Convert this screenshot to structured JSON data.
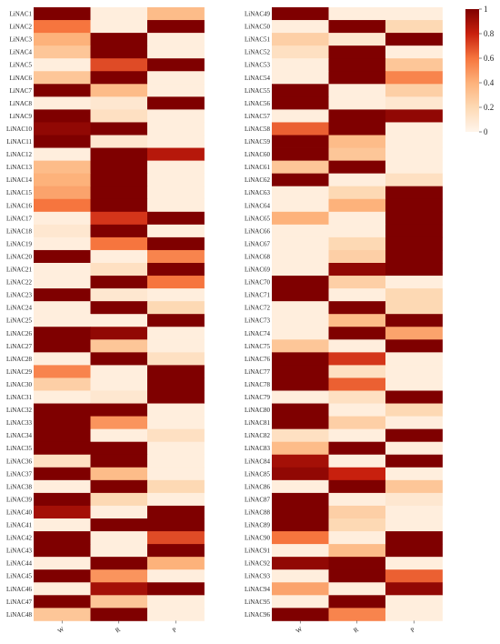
{
  "chart_data": {
    "type": "heatmap",
    "columns": [
      "W",
      "R",
      "P"
    ],
    "colorbar": {
      "min": 0,
      "max": 1,
      "ticks": [
        "0",
        "0.2",
        "0.4",
        "0.6",
        "0.8",
        "1"
      ]
    },
    "colors": {
      "low": "#fff5eb",
      "high": "#7f0000"
    },
    "panels": [
      {
        "rows": [
          "LiNAC1",
          "LiNAC2",
          "LiNAC3",
          "LiNAC4",
          "LiNAC5",
          "LiNAC6",
          "LiNAC7",
          "LiNAC8",
          "LiNAC9",
          "LiNAC10",
          "LiNAC11",
          "LiNAC12",
          "LiNAC13",
          "LiNAC14",
          "LiNAC15",
          "LiNAC16",
          "LiNAC17",
          "LiNAC18",
          "LiNAC19",
          "LiNAC20",
          "LiNAC21",
          "LiNAC22",
          "LiNAC23",
          "LiNAC24",
          "LiNAC25",
          "LiNAC26",
          "LiNAC27",
          "LiNAC28",
          "LiNAC29",
          "LiNAC30",
          "LiNAC31",
          "LiNAC32",
          "LiNAC33",
          "LiNAC34",
          "LiNAC35",
          "LiNAC36",
          "LiNAC37",
          "LiNAC38",
          "LiNAC39",
          "LiNAC40",
          "LiNAC41",
          "LiNAC42",
          "LiNAC43",
          "LiNAC44",
          "LiNAC45",
          "LiNAC46",
          "LiNAC47",
          "LiNAC48"
        ],
        "values": [
          [
            1.0,
            0.05,
            0.35
          ],
          [
            0.6,
            0.05,
            1.0
          ],
          [
            0.4,
            1.0,
            0.05
          ],
          [
            0.3,
            1.0,
            0.05
          ],
          [
            0.05,
            0.7,
            1.0
          ],
          [
            0.3,
            1.0,
            0.05
          ],
          [
            1.0,
            0.35,
            0.05
          ],
          [
            0.05,
            0.1,
            1.0
          ],
          [
            1.0,
            0.15,
            0.05
          ],
          [
            0.95,
            1.0,
            0.05
          ],
          [
            1.0,
            0.1,
            0.05
          ],
          [
            0.05,
            1.0,
            0.85
          ],
          [
            0.35,
            1.0,
            0.05
          ],
          [
            0.4,
            1.0,
            0.05
          ],
          [
            0.45,
            1.0,
            0.05
          ],
          [
            0.6,
            1.0,
            0.05
          ],
          [
            0.05,
            0.75,
            1.0
          ],
          [
            0.1,
            1.0,
            0.05
          ],
          [
            0.05,
            0.6,
            1.0
          ],
          [
            1.0,
            0.05,
            0.55
          ],
          [
            0.05,
            0.15,
            1.0
          ],
          [
            0.05,
            1.0,
            0.6
          ],
          [
            1.0,
            0.1,
            0.05
          ],
          [
            0.05,
            1.0,
            0.2
          ],
          [
            0.05,
            0.05,
            1.0
          ],
          [
            1.0,
            0.95,
            0.05
          ],
          [
            1.0,
            0.3,
            0.05
          ],
          [
            0.05,
            1.0,
            0.15
          ],
          [
            0.55,
            0.05,
            1.0
          ],
          [
            0.25,
            0.05,
            1.0
          ],
          [
            0.05,
            0.1,
            1.0
          ],
          [
            1.0,
            1.0,
            0.05
          ],
          [
            1.0,
            0.5,
            0.05
          ],
          [
            1.0,
            0.05,
            0.15
          ],
          [
            1.0,
            1.0,
            0.05
          ],
          [
            0.15,
            1.0,
            0.05
          ],
          [
            1.0,
            0.35,
            0.05
          ],
          [
            0.05,
            1.0,
            0.2
          ],
          [
            1.0,
            0.2,
            0.05
          ],
          [
            0.9,
            0.05,
            1.0
          ],
          [
            0.05,
            1.0,
            1.0
          ],
          [
            1.0,
            0.05,
            0.7
          ],
          [
            1.0,
            0.05,
            1.0
          ],
          [
            0.05,
            1.0,
            0.4
          ],
          [
            1.0,
            0.5,
            0.05
          ],
          [
            0.05,
            0.9,
            1.0
          ],
          [
            1.0,
            0.3,
            0.05
          ],
          [
            0.3,
            1.0,
            0.05
          ]
        ]
      },
      {
        "rows": [
          "LiNAC49",
          "LiNAC50",
          "LiNAC51",
          "LiNAC52",
          "LiNAC53",
          "LiNAC54",
          "LiNAC55",
          "LiNAC56",
          "LiNAC57",
          "LiNAC58",
          "LiNAC59",
          "LiNAC60",
          "LiNAC61",
          "LiNAC62",
          "LiNAC63",
          "LiNAC64",
          "LiNAC65",
          "LiNAC66",
          "LiNAC67",
          "LiNAC68",
          "LiNAC69",
          "LiNAC70",
          "LiNAC71",
          "LiNAC72",
          "LiNAC73",
          "LiNAC74",
          "LiNAC75",
          "LiNAC76",
          "LiNAC77",
          "LiNAC78",
          "LiNAC79",
          "LiNAC80",
          "LiNAC81",
          "LiNAC82",
          "LiNAC83",
          "LiNAC84",
          "LiNAC85",
          "LiNAC86",
          "LiNAC87",
          "LiNAC88",
          "LiNAC89",
          "LiNAC90",
          "LiNAC91",
          "LiNAC92",
          "LiNAC93",
          "LiNAC94",
          "LiNAC95",
          "LiNAC96"
        ],
        "values": [
          [
            1.0,
            0.05,
            0.05
          ],
          [
            0.05,
            1.0,
            0.2
          ],
          [
            0.25,
            0.1,
            1.0
          ],
          [
            0.15,
            1.0,
            0.05
          ],
          [
            0.05,
            1.0,
            0.3
          ],
          [
            0.05,
            1.0,
            0.55
          ],
          [
            1.0,
            0.05,
            0.25
          ],
          [
            1.0,
            0.05,
            0.1
          ],
          [
            0.05,
            1.0,
            0.95
          ],
          [
            0.65,
            1.0,
            0.05
          ],
          [
            1.0,
            0.35,
            0.05
          ],
          [
            1.0,
            0.3,
            0.05
          ],
          [
            0.3,
            1.0,
            0.05
          ],
          [
            1.0,
            0.05,
            0.15
          ],
          [
            0.05,
            0.2,
            1.0
          ],
          [
            0.05,
            0.4,
            1.0
          ],
          [
            0.4,
            0.05,
            1.0
          ],
          [
            0.05,
            0.05,
            1.0
          ],
          [
            0.05,
            0.2,
            1.0
          ],
          [
            0.05,
            0.25,
            1.0
          ],
          [
            0.05,
            0.95,
            1.0
          ],
          [
            1.0,
            0.25,
            0.05
          ],
          [
            1.0,
            0.05,
            0.2
          ],
          [
            0.05,
            1.0,
            0.2
          ],
          [
            0.05,
            0.35,
            1.0
          ],
          [
            0.05,
            1.0,
            0.45
          ],
          [
            0.3,
            0.05,
            1.0
          ],
          [
            1.0,
            0.75,
            0.05
          ],
          [
            1.0,
            0.15,
            0.05
          ],
          [
            1.0,
            0.65,
            0.05
          ],
          [
            0.05,
            0.15,
            1.0
          ],
          [
            1.0,
            0.05,
            0.2
          ],
          [
            1.0,
            0.25,
            0.05
          ],
          [
            0.15,
            0.05,
            1.0
          ],
          [
            0.35,
            1.0,
            0.05
          ],
          [
            0.9,
            0.05,
            1.0
          ],
          [
            0.95,
            0.8,
            0.05
          ],
          [
            0.05,
            1.0,
            0.3
          ],
          [
            1.0,
            0.05,
            0.1
          ],
          [
            1.0,
            0.25,
            0.05
          ],
          [
            1.0,
            0.2,
            0.05
          ],
          [
            0.6,
            0.05,
            1.0
          ],
          [
            0.05,
            0.35,
            1.0
          ],
          [
            0.95,
            1.0,
            0.05
          ],
          [
            0.05,
            1.0,
            0.65
          ],
          [
            0.45,
            0.05,
            0.95
          ],
          [
            0.05,
            1.0,
            0.05
          ],
          [
            1.0,
            0.55,
            0.05
          ]
        ]
      }
    ]
  }
}
